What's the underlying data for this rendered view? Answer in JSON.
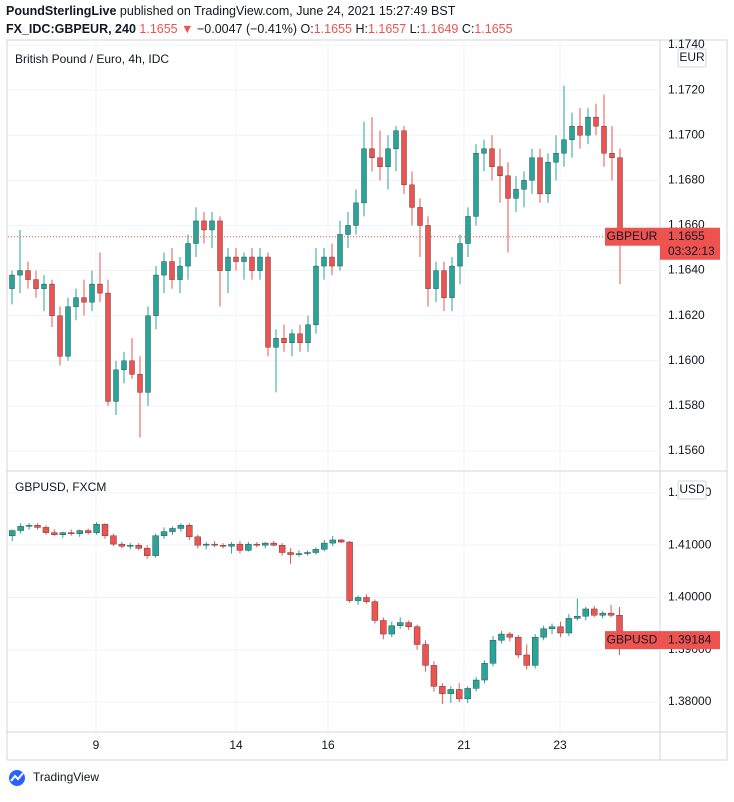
{
  "header": {
    "author": "PoundSterlingLive",
    "published": "published on TradingView.com, June 24, 2021 15:27:49 BST",
    "symbol": "FX_IDC:GBPEUR, 240",
    "price": 1.1655,
    "arrow": "▼",
    "change": "−0.0047 (−0.41%)",
    "ohlc": [
      {
        "label": "O:",
        "value": 1.1655
      },
      {
        "label": "H:",
        "value": 1.1657
      },
      {
        "label": "L:",
        "value": 1.1649
      },
      {
        "label": "C:",
        "value": 1.1655
      }
    ]
  },
  "chart_data": [
    {
      "type": "candlestick",
      "title": "British Pound / Euro, 4h, IDC",
      "unit": "EUR",
      "up_color": "#26a69a",
      "down_color": "#ef5350",
      "last_label": "GBPEUR",
      "last_value": 1.1655,
      "countdown": "03:32:13",
      "xlim": [
        -0.5,
        81
      ],
      "xticks": [
        {
          "value": 10.5,
          "label": "9"
        },
        {
          "value": 28,
          "label": "14"
        },
        {
          "value": 39.5,
          "label": "16"
        },
        {
          "value": 56.5,
          "label": "21"
        },
        {
          "value": 68.5,
          "label": "23"
        }
      ],
      "ylim": [
        1.15516,
        1.17422
      ],
      "yticks": [
        {
          "value": 1.156,
          "label": "1.1560"
        },
        {
          "value": 1.158,
          "label": "1.1580"
        },
        {
          "value": 1.16,
          "label": "1.1600"
        },
        {
          "value": 1.162,
          "label": "1.1620"
        },
        {
          "value": 1.164,
          "label": "1.1640"
        },
        {
          "value": 1.166,
          "label": "1.1660"
        },
        {
          "value": 1.168,
          "label": "1.1680"
        },
        {
          "value": 1.17,
          "label": "1.1700"
        },
        {
          "value": 1.172,
          "label": "1.1720"
        },
        {
          "value": 1.174,
          "label": "1.1740"
        }
      ],
      "grid": true,
      "ohlc": [
        [
          1.1632,
          1.164,
          1.1625,
          1.1638
        ],
        [
          1.1638,
          1.1658,
          1.163,
          1.164
        ],
        [
          1.164,
          1.1644,
          1.1632,
          1.1636
        ],
        [
          1.1636,
          1.164,
          1.1628,
          1.1632
        ],
        [
          1.1632,
          1.1638,
          1.1622,
          1.1634
        ],
        [
          1.1634,
          1.1636,
          1.1615,
          1.162
        ],
        [
          1.162,
          1.1624,
          1.1598,
          1.1602
        ],
        [
          1.1602,
          1.1628,
          1.16,
          1.1624
        ],
        [
          1.1624,
          1.1632,
          1.1618,
          1.1628
        ],
        [
          1.1628,
          1.1636,
          1.162,
          1.1626
        ],
        [
          1.1626,
          1.164,
          1.1622,
          1.1634
        ],
        [
          1.1634,
          1.1648,
          1.1626,
          1.163
        ],
        [
          1.163,
          1.1636,
          1.158,
          1.1582
        ],
        [
          1.1582,
          1.16,
          1.1576,
          1.1596
        ],
        [
          1.1596,
          1.1604,
          1.159,
          1.16
        ],
        [
          1.16,
          1.161,
          1.1592,
          1.1594
        ],
        [
          1.1594,
          1.1602,
          1.1566,
          1.1586
        ],
        [
          1.1586,
          1.1624,
          1.158,
          1.162
        ],
        [
          1.162,
          1.1642,
          1.1614,
          1.1638
        ],
        [
          1.1638,
          1.1648,
          1.163,
          1.1644
        ],
        [
          1.1644,
          1.165,
          1.1632,
          1.1636
        ],
        [
          1.1636,
          1.1646,
          1.163,
          1.1642
        ],
        [
          1.1642,
          1.1656,
          1.1636,
          1.1652
        ],
        [
          1.1652,
          1.1668,
          1.1646,
          1.1662
        ],
        [
          1.1662,
          1.1666,
          1.1652,
          1.1658
        ],
        [
          1.1658,
          1.1666,
          1.165,
          1.1662
        ],
        [
          1.1662,
          1.1664,
          1.1624,
          1.164
        ],
        [
          1.164,
          1.165,
          1.163,
          1.1646
        ],
        [
          1.1646,
          1.165,
          1.164,
          1.1644
        ],
        [
          1.1644,
          1.1648,
          1.1636,
          1.1646
        ],
        [
          1.1646,
          1.165,
          1.1636,
          1.164
        ],
        [
          1.164,
          1.165,
          1.1636,
          1.1646
        ],
        [
          1.1646,
          1.1648,
          1.1602,
          1.1606
        ],
        [
          1.1606,
          1.1614,
          1.1586,
          1.161
        ],
        [
          1.161,
          1.1616,
          1.1604,
          1.1608
        ],
        [
          1.1608,
          1.1614,
          1.1602,
          1.1612
        ],
        [
          1.1612,
          1.1616,
          1.1604,
          1.1608
        ],
        [
          1.1608,
          1.162,
          1.1604,
          1.1616
        ],
        [
          1.1616,
          1.165,
          1.1612,
          1.1642
        ],
        [
          1.1642,
          1.165,
          1.1636,
          1.1646
        ],
        [
          1.1646,
          1.1652,
          1.1638,
          1.1642
        ],
        [
          1.1642,
          1.1662,
          1.164,
          1.1656
        ],
        [
          1.1656,
          1.1666,
          1.165,
          1.166
        ],
        [
          1.166,
          1.1676,
          1.1656,
          1.167
        ],
        [
          1.167,
          1.1706,
          1.1664,
          1.1694
        ],
        [
          1.1694,
          1.1708,
          1.1684,
          1.169
        ],
        [
          1.169,
          1.1702,
          1.168,
          1.1686
        ],
        [
          1.1686,
          1.17,
          1.1676,
          1.1694
        ],
        [
          1.1694,
          1.1704,
          1.1684,
          1.1702
        ],
        [
          1.1702,
          1.1704,
          1.1674,
          1.1678
        ],
        [
          1.1678,
          1.1684,
          1.166,
          1.1668
        ],
        [
          1.1668,
          1.1672,
          1.1646,
          1.166
        ],
        [
          1.166,
          1.1664,
          1.1624,
          1.1632
        ],
        [
          1.1632,
          1.1644,
          1.1626,
          1.164
        ],
        [
          1.164,
          1.1644,
          1.1622,
          1.1628
        ],
        [
          1.1628,
          1.1646,
          1.1622,
          1.1642
        ],
        [
          1.1642,
          1.1656,
          1.1634,
          1.1652
        ],
        [
          1.1652,
          1.1668,
          1.1646,
          1.1664
        ],
        [
          1.1664,
          1.1696,
          1.166,
          1.1692
        ],
        [
          1.1692,
          1.1698,
          1.1684,
          1.1694
        ],
        [
          1.1694,
          1.17,
          1.168,
          1.1686
        ],
        [
          1.1686,
          1.1694,
          1.167,
          1.1682
        ],
        [
          1.1682,
          1.1688,
          1.1648,
          1.1672
        ],
        [
          1.1672,
          1.1682,
          1.1666,
          1.1676
        ],
        [
          1.1676,
          1.1684,
          1.1668,
          1.168
        ],
        [
          1.168,
          1.1694,
          1.1674,
          1.169
        ],
        [
          1.169,
          1.1694,
          1.167,
          1.1674
        ],
        [
          1.1674,
          1.1692,
          1.167,
          1.1688
        ],
        [
          1.1688,
          1.17,
          1.168,
          1.1692
        ],
        [
          1.1692,
          1.1722,
          1.1686,
          1.1698
        ],
        [
          1.1698,
          1.171,
          1.169,
          1.1704
        ],
        [
          1.1704,
          1.1712,
          1.1694,
          1.17
        ],
        [
          1.17,
          1.1712,
          1.1696,
          1.1708
        ],
        [
          1.1708,
          1.1714,
          1.17,
          1.1704
        ],
        [
          1.1704,
          1.1718,
          1.1686,
          1.1692
        ],
        [
          1.1692,
          1.1704,
          1.168,
          1.169
        ],
        [
          1.169,
          1.1694,
          1.1634,
          1.1655
        ]
      ]
    },
    {
      "type": "candlestick",
      "title": "GBPUSD, FXCM",
      "unit": "USD",
      "up_color": "#26a69a",
      "down_color": "#ef5350",
      "last_label": "GBPUSD",
      "last_value": 1.39184,
      "xlim": [
        -0.5,
        76.8
      ],
      "ylim": [
        1.37426,
        1.424
      ],
      "yticks": [
        {
          "value": 1.38,
          "label": "1.38000"
        },
        {
          "value": 1.39,
          "label": "1.39000"
        },
        {
          "value": 1.4,
          "label": "1.40000"
        },
        {
          "value": 1.41,
          "label": "1.41000"
        },
        {
          "value": 1.42,
          "label": "1.42000"
        }
      ],
      "grid": true,
      "ohlc": [
        [
          1.4118,
          1.413,
          1.4108,
          1.4128
        ],
        [
          1.4128,
          1.4142,
          1.4122,
          1.4136
        ],
        [
          1.4136,
          1.4142,
          1.413,
          1.4138
        ],
        [
          1.4138,
          1.4142,
          1.413,
          1.4134
        ],
        [
          1.4134,
          1.4138,
          1.412,
          1.4124
        ],
        [
          1.4124,
          1.413,
          1.4118,
          1.412
        ],
        [
          1.412,
          1.4126,
          1.4114,
          1.4124
        ],
        [
          1.4124,
          1.413,
          1.4118,
          1.4122
        ],
        [
          1.4122,
          1.413,
          1.4116,
          1.4128
        ],
        [
          1.4128,
          1.4132,
          1.412,
          1.4124
        ],
        [
          1.4124,
          1.4144,
          1.412,
          1.414
        ],
        [
          1.414,
          1.4142,
          1.4112,
          1.4118
        ],
        [
          1.4118,
          1.4122,
          1.4098,
          1.4102
        ],
        [
          1.4102,
          1.4106,
          1.4094,
          1.4098
        ],
        [
          1.4098,
          1.4104,
          1.4092,
          1.41
        ],
        [
          1.41,
          1.4104,
          1.409,
          1.4094
        ],
        [
          1.4094,
          1.41,
          1.4074,
          1.408
        ],
        [
          1.408,
          1.4122,
          1.4076,
          1.4118
        ],
        [
          1.4118,
          1.4134,
          1.4112,
          1.4126
        ],
        [
          1.4126,
          1.4136,
          1.412,
          1.4132
        ],
        [
          1.4132,
          1.4142,
          1.4126,
          1.4138
        ],
        [
          1.4138,
          1.4142,
          1.411,
          1.4116
        ],
        [
          1.4116,
          1.412,
          1.4094,
          1.41
        ],
        [
          1.41,
          1.4106,
          1.4092,
          1.4102
        ],
        [
          1.4102,
          1.4108,
          1.4096,
          1.41
        ],
        [
          1.41,
          1.4104,
          1.4094,
          1.4098
        ],
        [
          1.4098,
          1.4106,
          1.4084,
          1.4102
        ],
        [
          1.4102,
          1.4108,
          1.4084,
          1.409
        ],
        [
          1.409,
          1.4106,
          1.4088,
          1.4102
        ],
        [
          1.4102,
          1.4106,
          1.4096,
          1.41
        ],
        [
          1.41,
          1.4106,
          1.4094,
          1.4104
        ],
        [
          1.4104,
          1.4108,
          1.4098,
          1.41
        ],
        [
          1.41,
          1.4104,
          1.408,
          1.4086
        ],
        [
          1.4086,
          1.4094,
          1.4064,
          1.4082
        ],
        [
          1.4082,
          1.409,
          1.4078,
          1.4084
        ],
        [
          1.4084,
          1.409,
          1.408,
          1.4086
        ],
        [
          1.4086,
          1.4096,
          1.4082,
          1.4092
        ],
        [
          1.4092,
          1.411,
          1.4088,
          1.4104
        ],
        [
          1.4104,
          1.4118,
          1.4098,
          1.411
        ],
        [
          1.411,
          1.4112,
          1.4104,
          1.4106
        ],
        [
          1.4106,
          1.4108,
          1.399,
          1.3994
        ],
        [
          1.3994,
          1.4004,
          1.3986,
          1.4
        ],
        [
          1.4,
          1.4006,
          1.3988,
          1.3992
        ],
        [
          1.3992,
          1.3996,
          1.395,
          1.3956
        ],
        [
          1.3956,
          1.3962,
          1.392,
          1.393
        ],
        [
          1.393,
          1.3954,
          1.3924,
          1.3946
        ],
        [
          1.3946,
          1.3962,
          1.394,
          1.3952
        ],
        [
          1.3952,
          1.3956,
          1.3938,
          1.3944
        ],
        [
          1.3944,
          1.3948,
          1.39,
          1.391
        ],
        [
          1.391,
          1.3918,
          1.3858,
          1.387
        ],
        [
          1.387,
          1.3878,
          1.382,
          1.383
        ],
        [
          1.383,
          1.3836,
          1.3796,
          1.3816
        ],
        [
          1.3816,
          1.383,
          1.3798,
          1.3824
        ],
        [
          1.3824,
          1.3836,
          1.38,
          1.3806
        ],
        [
          1.3806,
          1.383,
          1.3798,
          1.3826
        ],
        [
          1.3826,
          1.3848,
          1.382,
          1.3842
        ],
        [
          1.3842,
          1.388,
          1.3836,
          1.3874
        ],
        [
          1.3874,
          1.3926,
          1.3868,
          1.3918
        ],
        [
          1.3918,
          1.3936,
          1.3912,
          1.393
        ],
        [
          1.393,
          1.3934,
          1.3916,
          1.3924
        ],
        [
          1.3924,
          1.3928,
          1.3884,
          1.389
        ],
        [
          1.389,
          1.391,
          1.3862,
          1.387
        ],
        [
          1.387,
          1.393,
          1.3864,
          1.3924
        ],
        [
          1.3924,
          1.3946,
          1.3918,
          1.394
        ],
        [
          1.394,
          1.395,
          1.393,
          1.3944
        ],
        [
          1.3944,
          1.3954,
          1.3924,
          1.3932
        ],
        [
          1.3932,
          1.3968,
          1.3926,
          1.396
        ],
        [
          1.396,
          1.3998,
          1.3956,
          1.3964
        ],
        [
          1.3964,
          1.3982,
          1.3956,
          1.3978
        ],
        [
          1.3978,
          1.3984,
          1.3962,
          1.3966
        ],
        [
          1.3966,
          1.3974,
          1.396,
          1.397
        ],
        [
          1.397,
          1.3986,
          1.3962,
          1.3966
        ],
        [
          1.3966,
          1.3982,
          1.389,
          1.3918
        ]
      ]
    }
  ]
}
